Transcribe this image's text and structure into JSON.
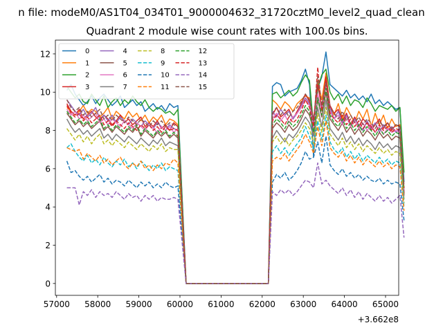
{
  "suptitle": "n file: modeM0/AS1T04_034T01_9000004632_31720cztM0_level2_quad_clean",
  "title": "Quadrant 2 module wise count rates with 100.0s bins.",
  "offset_label": "+3.662e8",
  "chart_data": {
    "type": "line",
    "title": "Quadrant 2 module wise count rates with 100.0s bins.",
    "xlabel": "",
    "ylabel": "",
    "x_offset": 366200000,
    "xlim": [
      56970,
      65320
    ],
    "ylim": [
      -0.62,
      12.72
    ],
    "xticks": [
      57000,
      58000,
      59000,
      60000,
      61000,
      62000,
      63000,
      64000,
      65000
    ],
    "yticks": [
      0,
      2,
      4,
      6,
      8,
      10,
      12
    ],
    "grid": false,
    "legend_position": "top-left",
    "legend_columns": 4,
    "x_start": 57250,
    "x_step": 100,
    "gap_range": [
      60150,
      62150
    ],
    "series": [
      {
        "name": "0",
        "color": "#1f77b4",
        "dash": "solid",
        "pre": [
          10.1,
          10.4,
          9.9,
          9.6,
          9.3,
          9.5,
          9.8,
          9.4,
          9.7,
          9.9,
          9.6,
          9.3,
          9.5,
          9.8,
          9.2,
          9.4,
          9.6,
          9.3,
          9.5,
          9.0,
          9.2,
          9.4,
          9.1,
          9.3,
          9.0,
          9.4,
          9.2,
          9.3
        ],
        "post": [
          10.3,
          10.5,
          10.4,
          9.8,
          10.0,
          10.1,
          10.2,
          10.6,
          11.2,
          10.4,
          6.6,
          10.2,
          10.8,
          12.1,
          10.4,
          10.2,
          10.0,
          9.8,
          10.1,
          9.7,
          9.9,
          9.6,
          9.8,
          9.5,
          9.9,
          9.4,
          9.6,
          9.3,
          9.5,
          9.3,
          9.1,
          9.2,
          5.3
        ]
      },
      {
        "name": "1",
        "color": "#ff7f0e",
        "dash": "solid",
        "pre": [
          9.2,
          9.0,
          8.8,
          9.0,
          9.3,
          8.9,
          9.1,
          9.0,
          8.7,
          8.9,
          9.2,
          8.6,
          9.0,
          8.8,
          8.6,
          9.0,
          8.7,
          8.9,
          8.5,
          8.8,
          8.4,
          8.7,
          8.5,
          8.8,
          8.3,
          8.6,
          8.5,
          8.3
        ],
        "post": [
          9.6,
          9.4,
          9.1,
          9.5,
          9.3,
          9.0,
          9.4,
          9.6,
          9.8,
          9.7,
          7.8,
          10.6,
          9.6,
          11.0,
          9.2,
          8.8,
          9.4,
          8.6,
          9.2,
          8.8,
          8.4,
          9.0,
          8.6,
          9.1,
          8.2,
          8.9,
          8.3,
          8.8,
          8.1,
          8.6,
          8.2,
          8.3,
          4.7
        ]
      },
      {
        "name": "2",
        "color": "#2ca02c",
        "dash": "solid",
        "pre": [
          10.3,
          10.0,
          9.7,
          9.9,
          9.5,
          9.4,
          9.9,
          9.6,
          9.3,
          9.8,
          9.2,
          9.5,
          9.7,
          9.3,
          9.6,
          9.4,
          9.8,
          9.5,
          9.3,
          9.6,
          9.2,
          9.0,
          9.2,
          9.1,
          8.9,
          9.0,
          8.8,
          9.1
        ],
        "post": [
          9.9,
          10.0,
          9.7,
          9.9,
          10.1,
          9.8,
          10.0,
          10.5,
          10.9,
          10.6,
          8.2,
          10.2,
          10.9,
          11.2,
          10.0,
          9.6,
          9.9,
          9.4,
          9.8,
          9.3,
          9.6,
          9.5,
          9.2,
          9.7,
          9.4,
          9.0,
          9.3,
          9.2,
          9.1,
          9.3,
          9.0,
          9.2,
          5.8
        ]
      },
      {
        "name": "3",
        "color": "#d62728",
        "dash": "solid",
        "pre": [
          9.4,
          9.0,
          8.8,
          9.1,
          8.6,
          8.8,
          9.0,
          8.7,
          8.5,
          8.8,
          8.6,
          8.3,
          8.5,
          8.8,
          8.4,
          8.6,
          8.3,
          8.5,
          8.7,
          8.2,
          8.4,
          8.2,
          8.5,
          8.1,
          8.3,
          8.0,
          8.4,
          8.2
        ],
        "post": [
          8.8,
          9.2,
          8.7,
          8.9,
          9.1,
          8.6,
          9.0,
          9.4,
          9.9,
          9.5,
          8.6,
          10.4,
          9.2,
          10.8,
          9.3,
          8.9,
          9.1,
          8.5,
          8.9,
          8.3,
          8.7,
          8.2,
          8.6,
          8.4,
          8.0,
          8.3,
          8.6,
          8.1,
          8.4,
          8.0,
          8.3,
          8.2,
          4.7
        ]
      },
      {
        "name": "4",
        "color": "#9467bd",
        "dash": "solid",
        "pre": [
          9.6,
          9.3,
          9.0,
          8.8,
          9.1,
          8.7,
          8.9,
          9.2,
          8.6,
          8.8,
          8.5,
          8.8,
          8.4,
          8.7,
          8.5,
          8.3,
          8.6,
          8.4,
          8.2,
          8.5,
          8.3,
          8.1,
          8.4,
          8.2,
          8.0,
          8.3,
          8.1,
          8.0
        ],
        "post": [
          9.0,
          8.7,
          9.1,
          8.8,
          9.0,
          8.6,
          8.9,
          9.3,
          9.7,
          9.4,
          8.3,
          9.8,
          9.1,
          10.4,
          9.2,
          8.6,
          9.0,
          8.4,
          8.8,
          8.2,
          8.6,
          8.3,
          8.0,
          8.5,
          8.1,
          8.4,
          7.9,
          8.3,
          8.0,
          8.2,
          7.9,
          8.1,
          4.8
        ]
      },
      {
        "name": "5",
        "color": "#8c564b",
        "dash": "solid",
        "pre": [
          8.9,
          8.6,
          8.3,
          8.5,
          8.2,
          8.4,
          8.1,
          8.3,
          8.5,
          8.0,
          8.2,
          7.9,
          8.2,
          8.0,
          7.8,
          8.1,
          7.9,
          8.2,
          7.7,
          8.0,
          7.8,
          7.6,
          7.9,
          7.7,
          7.9,
          7.6,
          7.8,
          7.6
        ],
        "post": [
          8.1,
          8.4,
          8.2,
          7.9,
          8.3,
          8.0,
          8.2,
          8.6,
          9.1,
          8.8,
          8.0,
          9.6,
          8.7,
          10.0,
          8.6,
          8.3,
          8.0,
          8.4,
          7.9,
          8.2,
          7.8,
          8.1,
          7.7,
          8.0,
          7.8,
          7.5,
          7.9,
          7.6,
          7.8,
          7.5,
          7.7,
          7.6,
          4.6
        ]
      },
      {
        "name": "6",
        "color": "#e377c2",
        "dash": "solid",
        "pre": [
          9.1,
          8.8,
          9.0,
          8.6,
          8.8,
          8.5,
          8.7,
          8.9,
          8.4,
          8.6,
          8.3,
          8.6,
          8.4,
          8.2,
          8.5,
          8.3,
          8.1,
          8.4,
          8.2,
          8.0,
          8.3,
          8.1,
          7.9,
          8.2,
          8.0,
          8.2,
          7.9,
          8.1
        ],
        "post": [
          8.6,
          8.9,
          8.5,
          8.8,
          8.4,
          8.7,
          8.9,
          9.2,
          9.6,
          9.3,
          8.1,
          9.9,
          9.0,
          10.3,
          9.0,
          8.6,
          8.8,
          8.3,
          8.7,
          8.2,
          8.5,
          8.1,
          8.4,
          8.0,
          8.3,
          7.9,
          8.2,
          7.8,
          8.1,
          7.9,
          8.0,
          7.9,
          4.9
        ]
      },
      {
        "name": "7",
        "color": "#7f7f7f",
        "dash": "solid",
        "pre": [
          8.6,
          8.2,
          7.9,
          8.1,
          7.8,
          8.0,
          7.7,
          7.9,
          8.1,
          7.6,
          7.8,
          7.5,
          7.8,
          7.6,
          7.4,
          7.7,
          7.5,
          7.3,
          7.6,
          7.4,
          7.2,
          7.5,
          7.3,
          7.6,
          7.2,
          7.4,
          7.3,
          7.2
        ],
        "post": [
          7.6,
          8.0,
          7.7,
          7.4,
          7.8,
          7.6,
          7.9,
          8.3,
          8.7,
          8.4,
          7.7,
          9.2,
          8.2,
          9.6,
          8.1,
          7.8,
          7.5,
          7.9,
          7.4,
          7.7,
          7.3,
          7.6,
          7.2,
          7.5,
          7.3,
          7.0,
          7.4,
          7.1,
          7.3,
          7.0,
          7.2,
          7.1,
          4.4
        ]
      },
      {
        "name": "8",
        "color": "#bcbd22",
        "dash": "dashed",
        "pre": [
          8.1,
          7.8,
          7.5,
          7.8,
          7.4,
          7.7,
          7.3,
          7.6,
          7.8,
          7.3,
          7.5,
          7.2,
          7.5,
          7.3,
          7.1,
          7.4,
          7.2,
          7.0,
          7.3,
          7.1,
          6.9,
          7.2,
          7.0,
          7.3,
          6.9,
          7.1,
          7.0,
          7.0
        ],
        "post": [
          7.4,
          7.7,
          7.3,
          7.6,
          7.2,
          7.5,
          7.7,
          8.0,
          8.4,
          8.1,
          7.3,
          8.9,
          7.9,
          9.2,
          7.8,
          7.5,
          7.2,
          7.6,
          7.1,
          7.4,
          7.0,
          7.3,
          6.9,
          7.2,
          7.0,
          6.8,
          7.1,
          6.8,
          7.0,
          6.7,
          6.9,
          6.8,
          4.2
        ]
      },
      {
        "name": "9",
        "color": "#17becf",
        "dash": "dashed",
        "pre": [
          7.1,
          7.3,
          6.9,
          6.6,
          6.4,
          6.7,
          6.3,
          6.5,
          6.2,
          6.6,
          6.3,
          6.1,
          6.4,
          6.2,
          6.5,
          6.1,
          6.3,
          6.0,
          6.4,
          6.2,
          5.9,
          6.2,
          6.0,
          6.3,
          5.9,
          6.1,
          6.0,
          5.9
        ],
        "post": [
          6.9,
          7.2,
          6.8,
          7.1,
          6.7,
          7.0,
          7.3,
          7.6,
          8.2,
          7.7,
          7.0,
          8.5,
          7.5,
          8.8,
          7.4,
          7.0,
          6.8,
          7.1,
          6.6,
          6.9,
          6.5,
          6.8,
          6.4,
          6.7,
          6.5,
          6.3,
          6.6,
          6.3,
          6.5,
          6.2,
          6.4,
          6.3,
          4.0
        ]
      },
      {
        "name": "10",
        "color": "#1f77b4",
        "dash": "dashed",
        "pre": [
          6.4,
          5.8,
          5.9,
          5.6,
          5.4,
          5.6,
          5.3,
          5.5,
          5.7,
          5.3,
          5.5,
          5.2,
          5.4,
          5.3,
          5.1,
          5.4,
          5.2,
          5.0,
          5.3,
          5.1,
          5.3,
          5.0,
          5.2,
          5.0,
          5.3,
          5.1,
          5.0,
          5.1
        ],
        "post": [
          5.3,
          5.7,
          5.5,
          5.8,
          5.4,
          5.6,
          5.9,
          6.3,
          6.9,
          6.5,
          6.6,
          7.4,
          6.3,
          7.7,
          6.2,
          5.9,
          5.7,
          6.0,
          5.6,
          5.8,
          5.5,
          5.7,
          5.4,
          5.6,
          5.4,
          5.3,
          5.5,
          5.2,
          5.4,
          5.2,
          5.3,
          5.2,
          3.3
        ]
      },
      {
        "name": "11",
        "color": "#ff7f0e",
        "dash": "dashed",
        "pre": [
          7.1,
          7.0,
          6.9,
          7.0,
          6.5,
          6.8,
          6.6,
          6.4,
          6.7,
          6.3,
          6.5,
          6.2,
          6.4,
          6.6,
          6.2,
          6.0,
          6.3,
          6.1,
          6.4,
          6.0,
          6.2,
          5.9,
          6.2,
          6.0,
          6.3,
          6.2,
          6.5,
          6.3
        ],
        "post": [
          6.4,
          6.6,
          6.5,
          6.8,
          6.4,
          6.7,
          7.0,
          7.3,
          7.8,
          7.4,
          6.8,
          8.2,
          7.2,
          8.5,
          7.1,
          6.8,
          6.6,
          6.9,
          6.4,
          6.7,
          6.3,
          6.6,
          6.2,
          6.5,
          6.3,
          6.1,
          6.4,
          6.1,
          6.3,
          6.0,
          6.2,
          6.1,
          3.8
        ]
      },
      {
        "name": "12",
        "color": "#2ca02c",
        "dash": "dashed",
        "pre": [
          9.0,
          8.7,
          8.4,
          8.6,
          8.3,
          8.5,
          8.2,
          8.4,
          8.6,
          8.1,
          8.3,
          8.0,
          8.3,
          8.1,
          7.9,
          8.2,
          8.0,
          8.3,
          7.8,
          8.1,
          7.9,
          7.7,
          8.0,
          7.8,
          8.0,
          7.7,
          7.9,
          7.7
        ],
        "post": [
          8.3,
          8.6,
          8.4,
          8.1,
          8.5,
          8.2,
          8.4,
          8.8,
          9.3,
          9.0,
          7.9,
          9.7,
          8.8,
          10.2,
          8.8,
          8.4,
          8.2,
          8.6,
          8.1,
          8.4,
          8.0,
          8.3,
          7.9,
          8.2,
          8.0,
          7.7,
          8.1,
          7.8,
          8.0,
          7.7,
          7.9,
          7.8,
          4.9
        ]
      },
      {
        "name": "13",
        "color": "#d62728",
        "dash": "dashed",
        "pre": [
          9.3,
          8.9,
          8.7,
          8.9,
          8.5,
          8.7,
          8.4,
          8.6,
          8.8,
          8.3,
          8.5,
          8.2,
          8.5,
          8.3,
          8.1,
          8.4,
          8.2,
          8.0,
          8.3,
          8.1,
          8.3,
          8.0,
          8.2,
          7.9,
          8.2,
          8.0,
          8.1,
          8.0
        ],
        "post": [
          8.5,
          8.8,
          8.6,
          8.3,
          8.7,
          8.4,
          8.6,
          9.0,
          9.6,
          9.2,
          8.2,
          11.3,
          9.0,
          10.6,
          8.9,
          8.6,
          8.4,
          8.8,
          8.3,
          8.6,
          8.2,
          8.5,
          8.1,
          8.4,
          8.2,
          7.9,
          8.3,
          8.0,
          8.2,
          7.9,
          8.1,
          8.0,
          5.0
        ]
      },
      {
        "name": "14",
        "color": "#9467bd",
        "dash": "dashed",
        "pre": [
          5.0,
          5.0,
          5.0,
          4.1,
          4.8,
          4.6,
          4.9,
          4.5,
          4.8,
          4.6,
          4.7,
          4.5,
          4.8,
          4.6,
          4.4,
          4.7,
          4.5,
          4.6,
          4.3,
          4.6,
          4.4,
          4.6,
          4.3,
          4.5,
          4.4,
          4.4,
          4.5,
          4.4
        ],
        "post": [
          4.8,
          4.6,
          4.9,
          4.7,
          4.9,
          4.6,
          4.8,
          5.1,
          5.4,
          5.3,
          5.0,
          6.3,
          5.2,
          5.4,
          5.1,
          4.9,
          4.7,
          5.0,
          4.6,
          4.9,
          4.5,
          4.8,
          4.4,
          4.7,
          4.5,
          4.3,
          4.6,
          4.3,
          4.5,
          4.2,
          4.4,
          4.6,
          2.4
        ]
      },
      {
        "name": "15",
        "color": "#8c564b",
        "dash": "dashed",
        "pre": [
          9.6,
          9.2,
          9.0,
          9.2,
          8.8,
          9.0,
          8.7,
          8.9,
          9.1,
          8.6,
          8.8,
          8.5,
          8.8,
          8.6,
          8.4,
          8.7,
          8.5,
          8.3,
          8.6,
          8.4,
          8.2,
          8.5,
          8.3,
          8.5,
          8.2,
          8.4,
          8.3,
          8.2
        ],
        "post": [
          8.9,
          9.2,
          8.8,
          9.1,
          8.7,
          9.0,
          9.2,
          9.5,
          9.9,
          9.6,
          8.5,
          10.8,
          9.3,
          10.5,
          9.2,
          8.9,
          8.6,
          9.0,
          8.5,
          8.8,
          8.4,
          8.7,
          8.3,
          8.6,
          8.4,
          8.1,
          8.5,
          8.2,
          8.4,
          8.1,
          8.3,
          8.2,
          5.1
        ]
      }
    ]
  }
}
